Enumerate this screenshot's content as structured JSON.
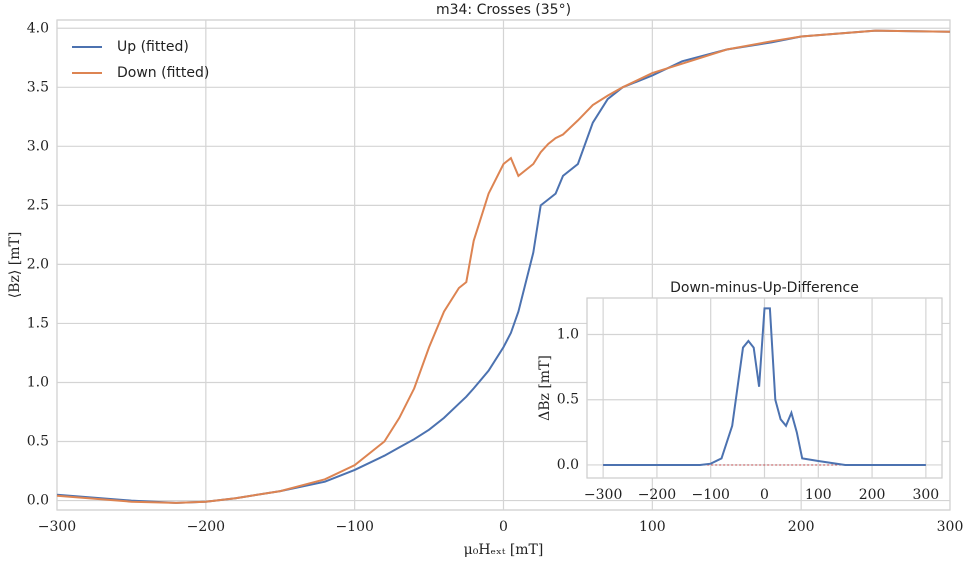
{
  "chart_data": [
    {
      "type": "line",
      "title": "m34: Crosses (35°)",
      "x_label": "μ₀Hₑₓₜ [mT]",
      "y_label": "⟨Bz⟩ [mT]",
      "xlim": [
        -300,
        300
      ],
      "ylim": [
        -0.08,
        4.07
      ],
      "xticks": [
        {
          "value": -300,
          "label": "−300"
        },
        {
          "value": -200,
          "label": "−200"
        },
        {
          "value": -100,
          "label": "−100"
        },
        0,
        100,
        200,
        300
      ],
      "yticks": [
        {
          "value": 0,
          "label": "0.0"
        },
        0.5,
        {
          "value": 1,
          "label": "1.0"
        },
        1.5,
        {
          "value": 2,
          "label": "2.0"
        },
        2.5,
        {
          "value": 3,
          "label": "3.0"
        },
        3.5,
        {
          "value": 4,
          "label": "4.0"
        }
      ],
      "grid": true,
      "legend": "upper-left",
      "x": [
        -300,
        -250,
        -220,
        -200,
        -180,
        -150,
        -120,
        -100,
        -80,
        -70,
        -60,
        -50,
        -40,
        -30,
        -25,
        -20,
        -10,
        0,
        5,
        10,
        20,
        25,
        30,
        35,
        40,
        50,
        60,
        70,
        80,
        100,
        120,
        150,
        180,
        200,
        250,
        300
      ],
      "series": [
        {
          "name": "Up (fitted)",
          "color": "#4c72b0",
          "values": [
            0.05,
            0.0,
            -0.02,
            -0.01,
            0.02,
            0.08,
            0.16,
            0.26,
            0.38,
            0.45,
            0.52,
            0.6,
            0.7,
            0.82,
            0.88,
            0.95,
            1.1,
            1.3,
            1.42,
            1.6,
            2.1,
            2.5,
            2.55,
            2.6,
            2.75,
            2.85,
            3.2,
            3.4,
            3.5,
            3.6,
            3.72,
            3.82,
            3.88,
            3.93,
            3.98,
            3.97
          ]
        },
        {
          "name": "Down (fitted)",
          "color": "#dd8452",
          "values": [
            0.04,
            -0.01,
            -0.02,
            -0.01,
            0.02,
            0.08,
            0.18,
            0.3,
            0.5,
            0.7,
            0.95,
            1.3,
            1.6,
            1.8,
            1.85,
            2.2,
            2.6,
            2.85,
            2.9,
            2.75,
            2.85,
            2.95,
            3.02,
            3.07,
            3.1,
            3.22,
            3.35,
            3.43,
            3.5,
            3.62,
            3.7,
            3.82,
            3.89,
            3.93,
            3.98,
            3.97
          ]
        }
      ]
    },
    {
      "type": "line",
      "title": "Down-minus-Up-Difference",
      "y_label": "ΔBz [mT]",
      "xlim": [
        -330,
        330
      ],
      "ylim": [
        -0.1,
        1.28
      ],
      "xticks": [
        {
          "value": -300,
          "label": "−300"
        },
        {
          "value": -200,
          "label": "−200"
        },
        {
          "value": -100,
          "label": "−100"
        },
        0,
        100,
        200,
        300
      ],
      "yticks": [
        {
          "value": 0,
          "label": "0.0"
        },
        0.5,
        {
          "value": 1,
          "label": "1.0"
        }
      ],
      "grid": true,
      "hline": {
        "value": 0,
        "color": "#c44e52"
      },
      "x": [
        -300,
        -200,
        -120,
        -100,
        -80,
        -60,
        -50,
        -40,
        -30,
        -20,
        -10,
        0,
        10,
        20,
        30,
        40,
        50,
        60,
        70,
        100,
        150,
        200,
        300
      ],
      "series": [
        {
          "color": "#4c72b0",
          "values": [
            0.0,
            0.0,
            0.0,
            0.01,
            0.05,
            0.3,
            0.6,
            0.9,
            0.95,
            0.9,
            0.6,
            1.2,
            1.2,
            0.5,
            0.35,
            0.3,
            0.4,
            0.25,
            0.05,
            0.03,
            0.0,
            0.0,
            0.0
          ]
        }
      ]
    }
  ]
}
